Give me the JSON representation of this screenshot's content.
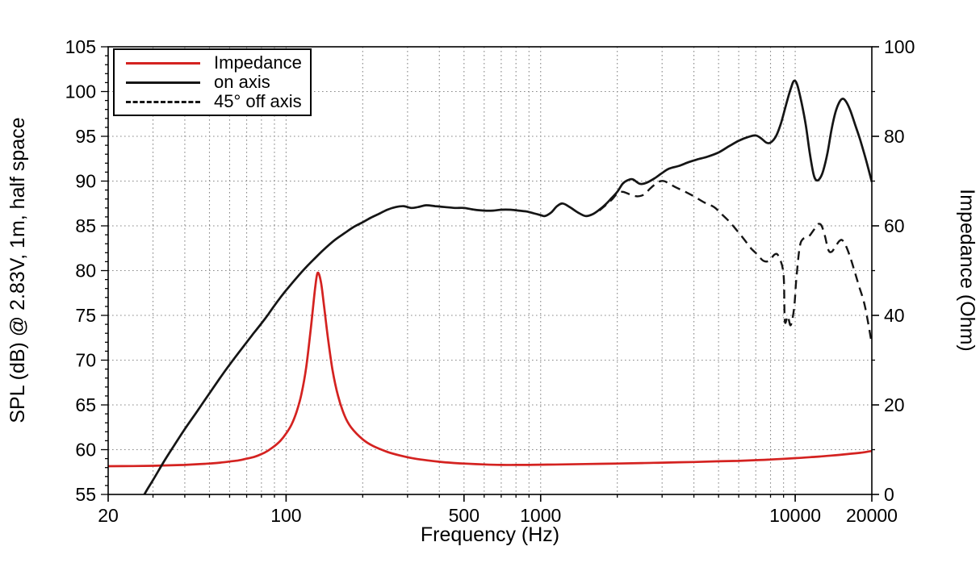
{
  "chart_data": {
    "type": "line",
    "title": "",
    "x_axis": {
      "label": "Frequency (Hz)",
      "scale": "log",
      "min": 20,
      "max": 20000,
      "ticks": [
        20,
        100,
        500,
        1000,
        10000,
        20000
      ],
      "tick_labels": [
        "20",
        "100",
        "500",
        "1000",
        "10000",
        "20000"
      ]
    },
    "y_left": {
      "label": "SPL (dB) @ 2.83V, 1m, half space",
      "min": 55,
      "max": 105,
      "ticks": [
        55,
        60,
        65,
        70,
        75,
        80,
        85,
        90,
        95,
        100,
        105
      ]
    },
    "y_right": {
      "label": "Impedance (Ohm)",
      "min": 0,
      "max": 100,
      "ticks": [
        0,
        20,
        40,
        60,
        80,
        100
      ]
    },
    "grid": {
      "style": "dotted",
      "color": "#8a8a8a",
      "x_minor": true,
      "y_major_step": 5
    },
    "legend_position": "top-left",
    "legend": [
      {
        "label": "Impedance",
        "color": "#d42220",
        "dash": "solid"
      },
      {
        "label": "on axis",
        "color": "#151515",
        "dash": "solid"
      },
      {
        "label": "45° off axis",
        "color": "#151515",
        "dash": "dashed"
      }
    ],
    "series": [
      {
        "name": "Impedance",
        "axis": "right",
        "unit": "Ohm",
        "color": "#d42220",
        "dash": "solid",
        "points": [
          [
            20,
            6.3
          ],
          [
            25,
            6.35
          ],
          [
            30,
            6.4
          ],
          [
            35,
            6.5
          ],
          [
            40,
            6.6
          ],
          [
            45,
            6.75
          ],
          [
            50,
            6.9
          ],
          [
            55,
            7.1
          ],
          [
            60,
            7.35
          ],
          [
            65,
            7.6
          ],
          [
            70,
            8.0
          ],
          [
            75,
            8.4
          ],
          [
            80,
            9.0
          ],
          [
            85,
            9.8
          ],
          [
            90,
            10.8
          ],
          [
            95,
            12.0
          ],
          [
            100,
            13.6
          ],
          [
            105,
            15.6
          ],
          [
            110,
            18.5
          ],
          [
            115,
            22.5
          ],
          [
            120,
            28.5
          ],
          [
            125,
            37
          ],
          [
            130,
            46
          ],
          [
            133,
            49.5
          ],
          [
            137,
            47.5
          ],
          [
            141,
            42
          ],
          [
            146,
            35
          ],
          [
            152,
            28
          ],
          [
            160,
            22
          ],
          [
            170,
            17.5
          ],
          [
            180,
            15
          ],
          [
            200,
            12.3
          ],
          [
            220,
            10.8
          ],
          [
            250,
            9.5
          ],
          [
            280,
            8.7
          ],
          [
            320,
            8.0
          ],
          [
            360,
            7.6
          ],
          [
            400,
            7.3
          ],
          [
            450,
            7.05
          ],
          [
            500,
            6.9
          ],
          [
            600,
            6.7
          ],
          [
            700,
            6.6
          ],
          [
            800,
            6.6
          ],
          [
            900,
            6.6
          ],
          [
            1000,
            6.65
          ],
          [
            1200,
            6.7
          ],
          [
            1500,
            6.8
          ],
          [
            2000,
            6.9
          ],
          [
            2500,
            7.0
          ],
          [
            3000,
            7.1
          ],
          [
            4000,
            7.25
          ],
          [
            5000,
            7.4
          ],
          [
            6000,
            7.5
          ],
          [
            7000,
            7.65
          ],
          [
            8000,
            7.8
          ],
          [
            10000,
            8.1
          ],
          [
            12000,
            8.4
          ],
          [
            14000,
            8.7
          ],
          [
            16000,
            9.0
          ],
          [
            18000,
            9.3
          ],
          [
            20000,
            9.7
          ]
        ]
      },
      {
        "name": "on axis",
        "axis": "left",
        "unit": "dB",
        "color": "#151515",
        "dash": "solid",
        "points": [
          [
            26,
            53.5
          ],
          [
            28,
            55.2
          ],
          [
            30,
            56.6
          ],
          [
            33,
            58.6
          ],
          [
            36,
            60.3
          ],
          [
            40,
            62.3
          ],
          [
            45,
            64.4
          ],
          [
            50,
            66.3
          ],
          [
            55,
            68.0
          ],
          [
            60,
            69.5
          ],
          [
            65,
            70.8
          ],
          [
            70,
            72.0
          ],
          [
            75,
            73.1
          ],
          [
            80,
            74.1
          ],
          [
            85,
            75.1
          ],
          [
            90,
            76.1
          ],
          [
            95,
            77.0
          ],
          [
            100,
            77.8
          ],
          [
            110,
            79.2
          ],
          [
            120,
            80.4
          ],
          [
            130,
            81.4
          ],
          [
            140,
            82.3
          ],
          [
            155,
            83.4
          ],
          [
            170,
            84.2
          ],
          [
            185,
            84.9
          ],
          [
            200,
            85.4
          ],
          [
            215,
            85.9
          ],
          [
            230,
            86.3
          ],
          [
            250,
            86.8
          ],
          [
            270,
            87.1
          ],
          [
            290,
            87.2
          ],
          [
            310,
            87.0
          ],
          [
            330,
            87.1
          ],
          [
            355,
            87.3
          ],
          [
            385,
            87.2
          ],
          [
            420,
            87.1
          ],
          [
            460,
            87.0
          ],
          [
            500,
            87.0
          ],
          [
            550,
            86.8
          ],
          [
            600,
            86.7
          ],
          [
            650,
            86.7
          ],
          [
            700,
            86.8
          ],
          [
            760,
            86.8
          ],
          [
            820,
            86.7
          ],
          [
            880,
            86.6
          ],
          [
            940,
            86.4
          ],
          [
            1000,
            86.2
          ],
          [
            1040,
            86.1
          ],
          [
            1100,
            86.5
          ],
          [
            1160,
            87.2
          ],
          [
            1220,
            87.5
          ],
          [
            1300,
            87.1
          ],
          [
            1400,
            86.5
          ],
          [
            1500,
            86.1
          ],
          [
            1600,
            86.3
          ],
          [
            1700,
            86.8
          ],
          [
            1800,
            87.4
          ],
          [
            1900,
            88.1
          ],
          [
            2000,
            88.8
          ],
          [
            2100,
            89.7
          ],
          [
            2200,
            90.1
          ],
          [
            2300,
            90.2
          ],
          [
            2450,
            89.7
          ],
          [
            2600,
            89.8
          ],
          [
            2800,
            90.3
          ],
          [
            3000,
            90.9
          ],
          [
            3200,
            91.4
          ],
          [
            3500,
            91.7
          ],
          [
            3800,
            92.1
          ],
          [
            4100,
            92.4
          ],
          [
            4500,
            92.7
          ],
          [
            5000,
            93.2
          ],
          [
            5500,
            93.9
          ],
          [
            6000,
            94.5
          ],
          [
            6500,
            94.9
          ],
          [
            7000,
            95.1
          ],
          [
            7400,
            94.7
          ],
          [
            7700,
            94.3
          ],
          [
            8000,
            94.3
          ],
          [
            8400,
            95.0
          ],
          [
            8800,
            96.5
          ],
          [
            9200,
            98.5
          ],
          [
            9600,
            100.3
          ],
          [
            9900,
            101.2
          ],
          [
            10200,
            100.7
          ],
          [
            10600,
            98.7
          ],
          [
            11000,
            96.3
          ],
          [
            11400,
            93.2
          ],
          [
            11800,
            90.8
          ],
          [
            12100,
            90.1
          ],
          [
            12500,
            90.3
          ],
          [
            12900,
            91.2
          ],
          [
            13400,
            93.2
          ],
          [
            13900,
            95.8
          ],
          [
            14400,
            97.7
          ],
          [
            14900,
            98.8
          ],
          [
            15400,
            99.2
          ],
          [
            15900,
            98.8
          ],
          [
            16500,
            97.8
          ],
          [
            17200,
            96.3
          ],
          [
            18000,
            94.6
          ],
          [
            19000,
            92.3
          ],
          [
            20000,
            89.9
          ]
        ]
      },
      {
        "name": "45° off axis",
        "axis": "left",
        "unit": "dB",
        "color": "#151515",
        "dash": "dashed",
        "points": [
          [
            1700,
            86.7
          ],
          [
            1800,
            87.3
          ],
          [
            1900,
            87.9
          ],
          [
            2000,
            88.6
          ],
          [
            2100,
            88.8
          ],
          [
            2250,
            88.5
          ],
          [
            2400,
            88.3
          ],
          [
            2550,
            88.5
          ],
          [
            2700,
            89.2
          ],
          [
            2900,
            89.9
          ],
          [
            3050,
            90.0
          ],
          [
            3200,
            89.7
          ],
          [
            3400,
            89.3
          ],
          [
            3700,
            88.8
          ],
          [
            4000,
            88.3
          ],
          [
            4400,
            87.6
          ],
          [
            4800,
            87.1
          ],
          [
            5100,
            86.4
          ],
          [
            5500,
            85.5
          ],
          [
            5900,
            84.5
          ],
          [
            6300,
            83.5
          ],
          [
            6700,
            82.5
          ],
          [
            7100,
            81.8
          ],
          [
            7500,
            81.1
          ],
          [
            7900,
            81.1
          ],
          [
            8300,
            81.8
          ],
          [
            8600,
            81.6
          ],
          [
            9000,
            79.6
          ],
          [
            9100,
            74.4
          ],
          [
            9350,
            74.9
          ],
          [
            9600,
            73.9
          ],
          [
            9900,
            75.8
          ],
          [
            10100,
            79.0
          ],
          [
            10400,
            82.5
          ],
          [
            10700,
            83.5
          ],
          [
            11300,
            83.8
          ],
          [
            11800,
            84.5
          ],
          [
            12300,
            85.2
          ],
          [
            12700,
            85.0
          ],
          [
            13100,
            83.8
          ],
          [
            13500,
            82.3
          ],
          [
            13900,
            82.1
          ],
          [
            14400,
            82.7
          ],
          [
            14900,
            83.3
          ],
          [
            15300,
            83.4
          ],
          [
            15800,
            82.8
          ],
          [
            16400,
            81.6
          ],
          [
            17000,
            80.2
          ],
          [
            17800,
            78.3
          ],
          [
            18800,
            76.0
          ],
          [
            20000,
            71.8
          ]
        ]
      }
    ]
  }
}
